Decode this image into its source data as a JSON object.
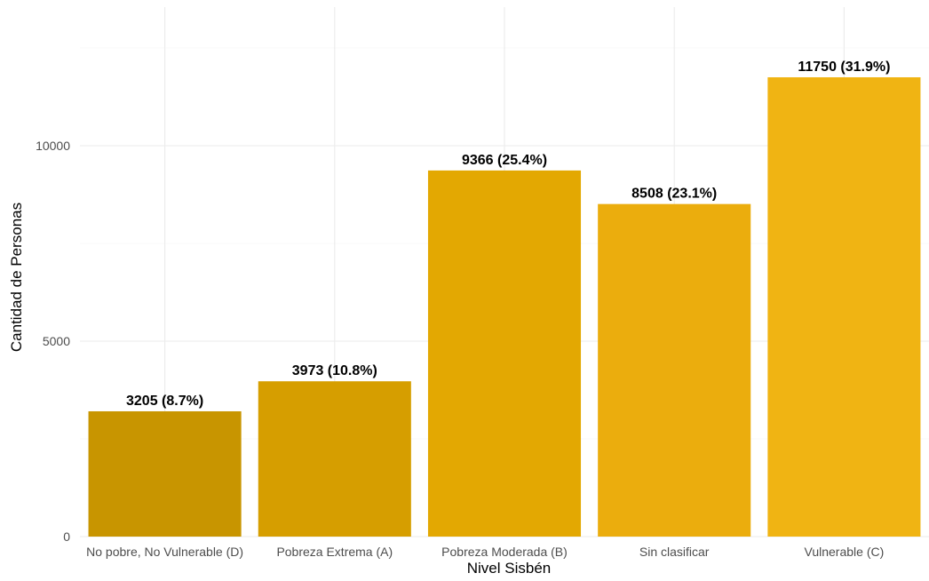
{
  "chart_data": {
    "type": "bar",
    "xlabel": "Nivel Sisbén",
    "ylabel": "Cantidad de Personas",
    "categories": [
      "No pobre, No Vulnerable (D)",
      "Pobreza Extrema (A)",
      "Pobreza Moderada (B)",
      "Sin clasificar",
      "Vulnerable (C)"
    ],
    "values": [
      3205,
      3973,
      9366,
      8508,
      11750
    ],
    "labels": [
      "3205 (8.7%)",
      "3973 (10.8%)",
      "9366 (25.4%)",
      "8508 (23.1%)",
      "11750 (31.9%)"
    ],
    "colors": [
      "#c89500",
      "#d69e00",
      "#e3a802",
      "#ebad0d",
      "#f0b413"
    ],
    "yticks": [
      0,
      5000,
      10000
    ],
    "ylim": [
      0,
      12500
    ],
    "grid": true,
    "legend": "none"
  }
}
